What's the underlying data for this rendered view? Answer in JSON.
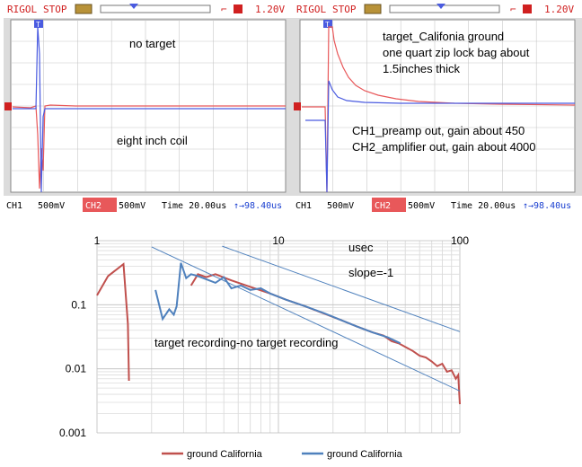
{
  "scopes": [
    {
      "brand": "RIGOL",
      "state": "STOP",
      "trig_icon": "trigger-edge-icon",
      "trig_level": "1.20V",
      "trig_marker": "T",
      "ch1_label": "CH1",
      "ch1_scale": "500mV",
      "ch2_label": "CH2",
      "ch2_scale": "500mV",
      "time": "Time 20.00us",
      "offset": "↑→98.40us",
      "notes": [
        "no target",
        "eight inch coil"
      ]
    },
    {
      "brand": "RIGOL",
      "state": "STOP",
      "trig_icon": "trigger-edge-icon",
      "trig_level": "1.20V",
      "trig_marker": "T",
      "ch1_label": "CH1",
      "ch1_scale": "500mV",
      "ch2_label": "CH2",
      "ch2_scale": "500mV",
      "time": "Time 20.00us",
      "offset": "↑→98.40us",
      "notes": [
        "target_Califonia ground",
        "one quart zip lock bag about",
        "1.5inches thick",
        "CH1_preamp out, gain about 450",
        "CH2_amplifier out, gain about 4000"
      ]
    }
  ],
  "colors": {
    "ch1": "#e8585a",
    "ch2": "#4a5be0",
    "series_red": "#c0504d",
    "series_blue": "#4f81bd",
    "slope_line": "#4f81bd"
  },
  "chart_data": {
    "type": "line",
    "xscale": "log",
    "yscale": "log",
    "xlim": [
      1,
      100
    ],
    "ylim": [
      0.001,
      1
    ],
    "xticks": [
      "1",
      "10",
      "100"
    ],
    "yticks": [
      "0.1",
      "0.01",
      "0.001"
    ],
    "xlabel": "usec",
    "annotations": [
      "slope=-1",
      "target recording-no target recording"
    ],
    "legend_position": "bottom",
    "series": [
      {
        "name": "ground California",
        "color": "#c0504d",
        "segments": [
          [
            [
              1.0,
              0.14
            ],
            [
              1.15,
              0.28
            ],
            [
              1.4,
              0.43
            ],
            [
              1.48,
              0.05
            ],
            [
              1.5,
              0.0065
            ]
          ],
          [
            [
              3.3,
              0.2
            ],
            [
              3.6,
              0.3
            ],
            [
              4.0,
              0.27
            ],
            [
              4.5,
              0.3
            ],
            [
              5.5,
              0.24
            ],
            [
              7.0,
              0.19
            ],
            [
              9.0,
              0.15
            ],
            [
              11,
              0.12
            ],
            [
              14,
              0.095
            ],
            [
              18,
              0.072
            ],
            [
              22,
              0.058
            ],
            [
              27,
              0.046
            ],
            [
              33,
              0.037
            ],
            [
              38,
              0.033
            ],
            [
              42,
              0.027
            ],
            [
              46,
              0.025
            ],
            [
              50,
              0.022
            ],
            [
              55,
              0.019
            ],
            [
              60,
              0.016
            ],
            [
              65,
              0.015
            ],
            [
              70,
              0.013
            ],
            [
              75,
              0.011
            ],
            [
              80,
              0.012
            ],
            [
              85,
              0.009
            ],
            [
              90,
              0.0095
            ],
            [
              95,
              0.007
            ],
            [
              98,
              0.008
            ],
            [
              100,
              0.0028
            ]
          ]
        ]
      },
      {
        "name": "ground California",
        "color": "#4f81bd",
        "segments": [
          [
            [
              2.1,
              0.17
            ],
            [
              2.3,
              0.06
            ],
            [
              2.5,
              0.085
            ],
            [
              2.65,
              0.07
            ],
            [
              2.75,
              0.095
            ],
            [
              2.9,
              0.45
            ],
            [
              3.1,
              0.26
            ],
            [
              3.3,
              0.3
            ],
            [
              3.6,
              0.28
            ],
            [
              4.0,
              0.25
            ],
            [
              4.5,
              0.22
            ],
            [
              5.0,
              0.27
            ],
            [
              5.5,
              0.18
            ],
            [
              6.2,
              0.2
            ],
            [
              7.0,
              0.17
            ],
            [
              8.0,
              0.18
            ],
            [
              9.0,
              0.15
            ],
            [
              11,
              0.12
            ],
            [
              14,
              0.095
            ],
            [
              18,
              0.073
            ],
            [
              22,
              0.058
            ],
            [
              27,
              0.046
            ],
            [
              33,
              0.037
            ],
            [
              40,
              0.031
            ],
            [
              47,
              0.025
            ]
          ]
        ]
      },
      {
        "color": "#4f81bd",
        "reference": true,
        "segments": [
          [
            [
              4.9,
              0.82
            ],
            [
              100,
              0.038
            ]
          ],
          [
            [
              2.0,
              0.8
            ],
            [
              100,
              0.0045
            ]
          ]
        ]
      }
    ]
  }
}
